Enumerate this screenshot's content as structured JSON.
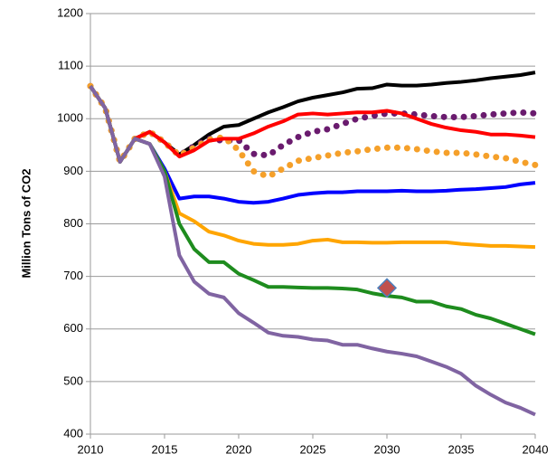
{
  "chart_data": {
    "type": "line",
    "y_label": "Million Tons of CO2",
    "x": [
      2010,
      2011,
      2012,
      2013,
      2014,
      2015,
      2016,
      2017,
      2018,
      2019,
      2020,
      2021,
      2022,
      2023,
      2024,
      2025,
      2026,
      2027,
      2028,
      2029,
      2030,
      2031,
      2032,
      2033,
      2034,
      2035,
      2036,
      2037,
      2038,
      2039,
      2040
    ],
    "xlim": [
      2010,
      2040
    ],
    "xticks": [
      2010,
      2015,
      2020,
      2025,
      2030,
      2035,
      2040
    ],
    "ylim": [
      400,
      1200
    ],
    "yticks": [
      400,
      500,
      600,
      700,
      800,
      900,
      1000,
      1100,
      1200
    ],
    "grid": true,
    "series": [
      {
        "color": "#000000",
        "style": "solid",
        "values": [
          1062,
          1020,
          918,
          962,
          975,
          955,
          932,
          950,
          970,
          985,
          988,
          1000,
          1012,
          1022,
          1033,
          1040,
          1045,
          1050,
          1057,
          1058,
          1065,
          1063,
          1063,
          1065,
          1068,
          1070,
          1073,
          1077,
          1080,
          1083,
          1088
        ]
      },
      {
        "color": "#6a1b6e",
        "style": "dotted",
        "values": [
          1062,
          1020,
          918,
          962,
          975,
          955,
          930,
          948,
          962,
          958,
          959,
          933,
          930,
          950,
          965,
          975,
          980,
          990,
          1000,
          1005,
          1010,
          1010,
          1008,
          1005,
          1003,
          1003,
          1005,
          1008,
          1010,
          1012,
          1010
        ]
      },
      {
        "color": "#f5a02a",
        "style": "dotted",
        "values": [
          1062,
          1020,
          918,
          962,
          975,
          955,
          930,
          945,
          960,
          965,
          940,
          900,
          890,
          905,
          920,
          925,
          930,
          935,
          938,
          942,
          945,
          945,
          942,
          938,
          935,
          935,
          932,
          928,
          925,
          918,
          912
        ]
      },
      {
        "color": "#ff0000",
        "style": "solid",
        "values": [
          1062,
          1020,
          918,
          962,
          975,
          955,
          928,
          940,
          958,
          962,
          962,
          972,
          985,
          995,
          1008,
          1010,
          1008,
          1010,
          1012,
          1012,
          1015,
          1010,
          1000,
          990,
          983,
          978,
          975,
          970,
          970,
          968,
          965
        ]
      },
      {
        "color": "#0000ff",
        "style": "solid",
        "values": [
          1062,
          1020,
          918,
          962,
          952,
          905,
          848,
          852,
          852,
          848,
          842,
          840,
          842,
          848,
          855,
          858,
          860,
          860,
          862,
          862,
          862,
          863,
          862,
          862,
          863,
          865,
          866,
          868,
          870,
          875,
          878
        ]
      },
      {
        "color": "#ffa500",
        "style": "solid",
        "values": [
          1062,
          1020,
          918,
          962,
          952,
          900,
          820,
          805,
          785,
          778,
          768,
          762,
          760,
          760,
          762,
          768,
          770,
          765,
          765,
          764,
          764,
          765,
          765,
          765,
          765,
          762,
          760,
          758,
          758,
          757,
          756
        ]
      },
      {
        "color": "#1e8c1e",
        "style": "solid",
        "values": [
          1062,
          1020,
          918,
          962,
          952,
          900,
          800,
          752,
          727,
          727,
          705,
          693,
          680,
          680,
          679,
          678,
          678,
          677,
          675,
          668,
          663,
          660,
          652,
          652,
          643,
          638,
          627,
          620,
          610,
          600,
          590
        ]
      },
      {
        "color": "#8064a2",
        "style": "solid",
        "values": [
          1062,
          1020,
          918,
          962,
          952,
          890,
          740,
          690,
          667,
          660,
          630,
          612,
          593,
          587,
          585,
          580,
          578,
          570,
          570,
          563,
          557,
          553,
          548,
          538,
          528,
          515,
          492,
          475,
          460,
          450,
          437
        ]
      }
    ],
    "points": {
      "color": "#c0504d",
      "marker": "diamond",
      "x": [
        2030
      ],
      "values": [
        678
      ]
    }
  }
}
